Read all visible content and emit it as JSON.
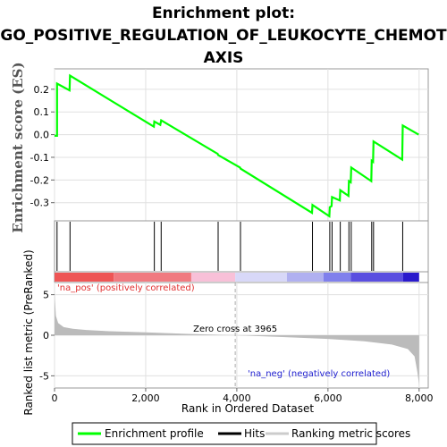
{
  "chart_data": {
    "type": "line",
    "title_lines": [
      "Enrichment plot:",
      "GO_POSITIVE_REGULATION_OF_LEUKOCYTE_CHEMOT",
      "AXIS"
    ],
    "ylabel_es": "Enrichment score (ES)",
    "ylabel_rank": "Ranked list metric (PreRanked)",
    "xlabel": "Rank in Ordered Dataset",
    "xlim": [
      0,
      8200
    ],
    "es_ylim": [
      -0.38,
      0.29
    ],
    "rank_ylim": [
      -6.5,
      6.5
    ],
    "x_ticks": [
      0,
      2000,
      4000,
      6000,
      8000
    ],
    "x_tick_labels": [
      "0",
      "2,000",
      "4,000",
      "6,000",
      "8,000"
    ],
    "es_ticks": [
      0.2,
      0.1,
      0.0,
      -0.1,
      -0.2,
      -0.3
    ],
    "es_tick_labels": [
      "0.2",
      "0.1",
      "0.0",
      "-0.1",
      "-0.2",
      "-0.3"
    ],
    "rank_ticks": [
      5,
      0,
      -5
    ],
    "rank_tick_labels": [
      "5",
      "0",
      "-5"
    ],
    "hits": [
      55,
      340,
      2190,
      2340,
      3590,
      4080,
      5660,
      6040,
      6090,
      6270,
      6460,
      6510,
      6960,
      7000,
      7640
    ],
    "enrichment_profile": {
      "x": [
        0,
        55,
        55,
        330,
        340,
        2180,
        2190,
        2320,
        2340,
        3580,
        3590,
        4070,
        4080,
        5650,
        5660,
        6030,
        6040,
        6080,
        6090,
        6260,
        6270,
        6450,
        6460,
        6500,
        6510,
        6950,
        6960,
        6990,
        7000,
        7630,
        7640,
        7990
      ],
      "y": [
        -0.005,
        -0.005,
        0.225,
        0.195,
        0.26,
        0.035,
        0.058,
        0.043,
        0.063,
        -0.085,
        -0.09,
        -0.145,
        -0.15,
        -0.345,
        -0.31,
        -0.36,
        -0.32,
        -0.315,
        -0.275,
        -0.29,
        -0.245,
        -0.27,
        -0.205,
        -0.21,
        -0.145,
        -0.205,
        -0.115,
        -0.12,
        -0.03,
        -0.11,
        0.04,
        0.0
      ]
    },
    "ranking_metric": {
      "x": [
        0,
        30,
        80,
        200,
        400,
        700,
        1200,
        2000,
        3000,
        3965,
        5000,
        6000,
        6800,
        7400,
        7750,
        7900,
        7960,
        8000
      ],
      "y": [
        5.2,
        2.4,
        1.5,
        1.0,
        0.8,
        0.65,
        0.5,
        0.35,
        0.15,
        0.0,
        -0.22,
        -0.45,
        -0.75,
        -1.15,
        -1.7,
        -2.6,
        -4.5,
        -6.1
      ]
    },
    "zero_cross_label": "Zero cross at 3965",
    "zero_cross": 3965,
    "pos_label": "'na_pos' (positively correlated)",
    "neg_label": "'na_neg' (negatively correlated)",
    "legend": [
      {
        "label": "Enrichment profile",
        "color": "#00ff00"
      },
      {
        "label": "Hits",
        "color": "#000000"
      },
      {
        "label": "Ranking metric scores",
        "color": "#cccccc"
      }
    ],
    "colors": {
      "profile": "#00ff00",
      "hits": "#000000",
      "metric_fill": "#bbbbbb",
      "pos_text": "#e03030",
      "neg_text": "#2020d0",
      "grid": "#e0e0e0"
    }
  }
}
